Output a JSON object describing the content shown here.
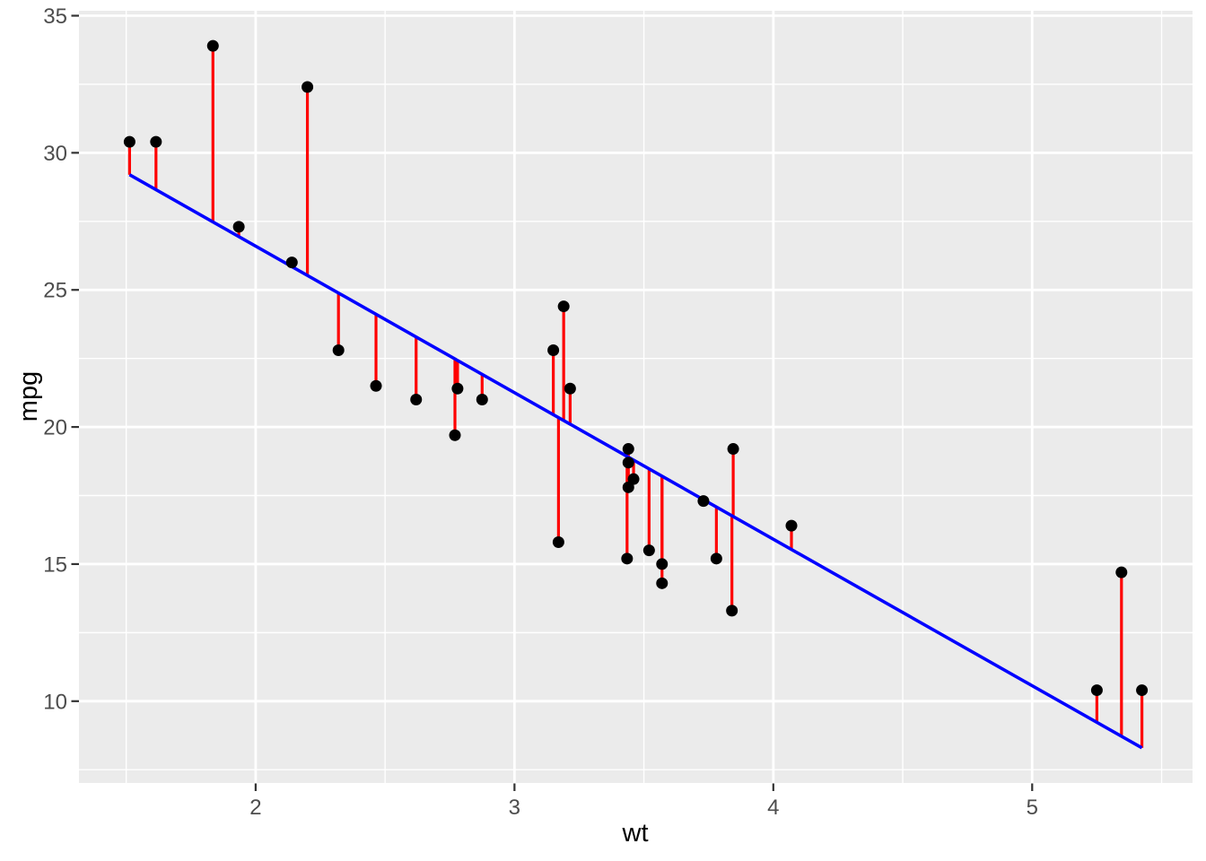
{
  "chart_data": {
    "type": "scatter",
    "xlabel": "wt",
    "ylabel": "mpg",
    "xlim": [
      1.31745,
      5.61955
    ],
    "ylim": [
      7.0166,
      35.1801
    ],
    "x_ticks": [
      2,
      3,
      4,
      5
    ],
    "y_ticks": [
      10,
      15,
      20,
      25,
      30,
      35
    ],
    "x_minor_ticks": [
      1.5,
      2.5,
      3.5,
      4.5,
      5.5
    ],
    "y_minor_ticks": [
      7.5,
      12.5,
      17.5,
      22.5,
      27.5,
      32.5
    ],
    "grid": "on",
    "legend": "none",
    "points": [
      {
        "wt": 2.62,
        "mpg": 21.0
      },
      {
        "wt": 2.875,
        "mpg": 21.0
      },
      {
        "wt": 2.32,
        "mpg": 22.8
      },
      {
        "wt": 3.215,
        "mpg": 21.4
      },
      {
        "wt": 3.44,
        "mpg": 18.7
      },
      {
        "wt": 3.46,
        "mpg": 18.1
      },
      {
        "wt": 3.57,
        "mpg": 14.3
      },
      {
        "wt": 3.19,
        "mpg": 24.4
      },
      {
        "wt": 3.15,
        "mpg": 22.8
      },
      {
        "wt": 3.44,
        "mpg": 19.2
      },
      {
        "wt": 3.44,
        "mpg": 17.8
      },
      {
        "wt": 4.07,
        "mpg": 16.4
      },
      {
        "wt": 3.73,
        "mpg": 17.3
      },
      {
        "wt": 3.78,
        "mpg": 15.2
      },
      {
        "wt": 5.25,
        "mpg": 10.4
      },
      {
        "wt": 5.424,
        "mpg": 10.4
      },
      {
        "wt": 5.345,
        "mpg": 14.7
      },
      {
        "wt": 2.2,
        "mpg": 32.4
      },
      {
        "wt": 1.615,
        "mpg": 30.4
      },
      {
        "wt": 1.835,
        "mpg": 33.9
      },
      {
        "wt": 2.465,
        "mpg": 21.5
      },
      {
        "wt": 3.52,
        "mpg": 15.5
      },
      {
        "wt": 3.435,
        "mpg": 15.2
      },
      {
        "wt": 3.84,
        "mpg": 13.3
      },
      {
        "wt": 3.845,
        "mpg": 19.2
      },
      {
        "wt": 1.935,
        "mpg": 27.3
      },
      {
        "wt": 2.14,
        "mpg": 26.0
      },
      {
        "wt": 1.513,
        "mpg": 30.4
      },
      {
        "wt": 3.17,
        "mpg": 15.8
      },
      {
        "wt": 2.77,
        "mpg": 19.7
      },
      {
        "wt": 3.57,
        "mpg": 15.0
      },
      {
        "wt": 2.78,
        "mpg": 21.4
      }
    ],
    "regression_line": {
      "intercept": 37.285126,
      "slope": -5.344472,
      "x_start": 1.513,
      "x_end": 5.424
    },
    "colors": {
      "point": "#000000",
      "residual": "#FF0000",
      "fit_line": "#0000FF",
      "panel": "#EBEBEB",
      "grid": "#FFFFFF",
      "tick_mark": "#333333",
      "tick_label": "#4D4D4D",
      "axis_title": "#000000"
    }
  }
}
